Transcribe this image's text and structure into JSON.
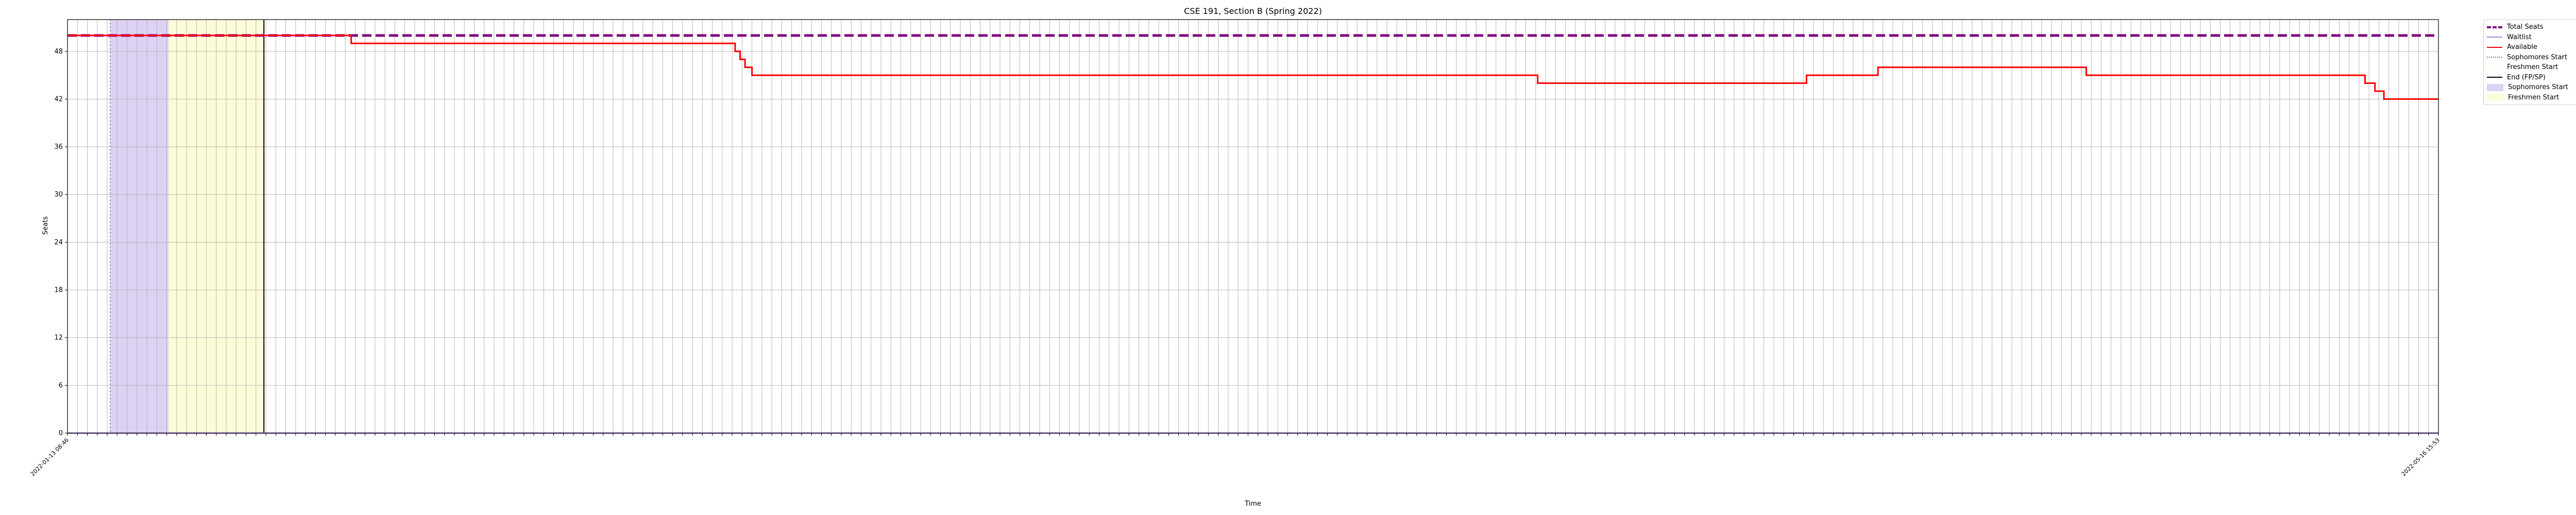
{
  "chart_data": {
    "type": "line",
    "title": "CSE 191, Section B (Spring 2022)",
    "xlabel": "Time",
    "ylabel": "Seats",
    "ylim": [
      0,
      52
    ],
    "yticks": [
      0,
      6,
      12,
      18,
      24,
      30,
      36,
      42,
      48
    ],
    "grid": true,
    "legend_position": "outside-right",
    "x_tick_count": 240,
    "x_first_tick": "2022-01-13 08:46",
    "x_last_tick": "2022-05-16 15:53",
    "series": [
      {
        "name": "Total Seats",
        "style": "dashed",
        "color": "#800080",
        "points": [
          [
            0,
            50
          ],
          [
            239,
            50
          ]
        ]
      },
      {
        "name": "Waitlist",
        "style": "solid",
        "color": "#a58bd8",
        "points": [
          [
            0,
            0
          ],
          [
            239,
            0
          ]
        ]
      },
      {
        "name": "Available",
        "style": "solid",
        "color": "#ff0000",
        "points": [
          [
            0,
            50
          ],
          [
            28.6,
            50
          ],
          [
            28.6,
            49
          ],
          [
            67.3,
            49
          ],
          [
            67.3,
            48
          ],
          [
            67.8,
            48
          ],
          [
            67.8,
            47
          ],
          [
            68.3,
            47
          ],
          [
            68.3,
            46
          ],
          [
            69,
            46
          ],
          [
            69,
            45
          ],
          [
            148.2,
            45
          ],
          [
            148.2,
            44
          ],
          [
            175.3,
            44
          ],
          [
            175.3,
            45
          ],
          [
            182.5,
            45
          ],
          [
            182.5,
            46
          ],
          [
            203.5,
            46
          ],
          [
            203.5,
            45
          ],
          [
            231.6,
            45
          ],
          [
            231.6,
            44
          ],
          [
            232.6,
            44
          ],
          [
            232.6,
            43
          ],
          [
            233.5,
            43
          ],
          [
            233.5,
            42
          ],
          [
            239,
            42
          ]
        ]
      }
    ],
    "markers": [
      {
        "name": "Sophomores Start",
        "type": "vline",
        "style": "dotted",
        "color": "#9467bd",
        "x": 4.3
      },
      {
        "name": "Freshmen Start",
        "type": "vline",
        "style": "dotted",
        "color": "#fffde0",
        "x": 10.2
      },
      {
        "name": "End (FP/SP)",
        "type": "vline",
        "style": "solid",
        "color": "#000000",
        "x": 19.8
      }
    ],
    "spans": [
      {
        "name": "Sophomores Start",
        "color": "#ddd2f4",
        "x0": 4.3,
        "x1": 10.2
      },
      {
        "name": "Freshmen Start",
        "color": "#fcfcd8",
        "x0": 10.2,
        "x1": 19.8
      }
    ],
    "legend": [
      {
        "label": "Total Seats",
        "kind": "dashed",
        "color": "#800080"
      },
      {
        "label": "Waitlist",
        "kind": "line",
        "color": "#a58bd8"
      },
      {
        "label": "Available",
        "kind": "line",
        "color": "#ff0000"
      },
      {
        "label": "Sophomores Start",
        "kind": "dotted",
        "color": "#9467bd"
      },
      {
        "label": "Freshmen Start",
        "kind": "dotted",
        "color": "#f5f2cf"
      },
      {
        "label": "End (FP/SP)",
        "kind": "line",
        "color": "#000000"
      },
      {
        "label": "Sophomores Start",
        "kind": "patch",
        "color": "#ddd2f4"
      },
      {
        "label": "Freshmen Start",
        "kind": "patch",
        "color": "#fcfcd8"
      }
    ]
  }
}
